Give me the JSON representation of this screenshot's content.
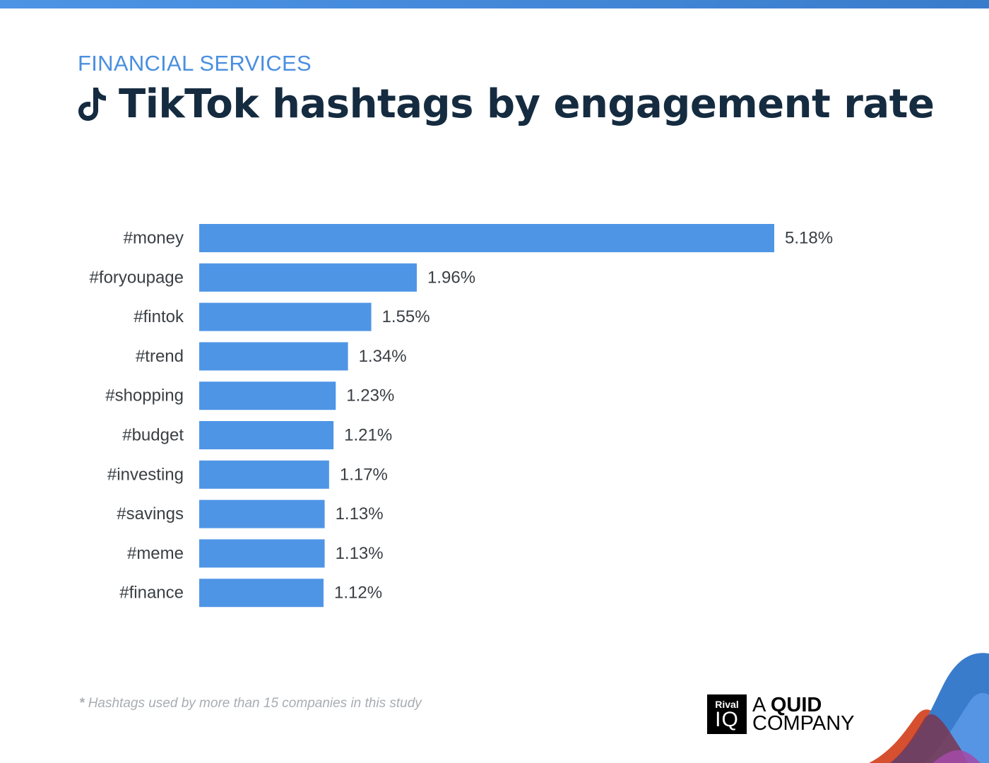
{
  "header": {
    "category": "FINANCIAL SERVICES",
    "title": "TikTok hashtags by engagement rate"
  },
  "footnote": {
    "star": "*",
    "text": "Hashtags used by more than 15 companies in this study"
  },
  "brand": {
    "box_line1": "Rival",
    "box_line2": "IQ",
    "tag_prefix": "A ",
    "tag_strong": "QUID",
    "tag_line2": "COMPANY"
  },
  "colors": {
    "bar": "#4f95e6",
    "title": "#152b40",
    "category": "#4a8fe0",
    "label": "#3a3f44"
  },
  "icons": {
    "title_icon": "tiktok-icon"
  },
  "chart_data": {
    "type": "bar",
    "orientation": "horizontal",
    "categories": [
      "#money",
      "#foryoupage",
      "#fintok",
      "#trend",
      "#shopping",
      "#budget",
      "#investing",
      "#savings",
      "#meme",
      "#finance"
    ],
    "values": [
      5.18,
      1.96,
      1.55,
      1.34,
      1.23,
      1.21,
      1.17,
      1.13,
      1.13,
      1.12
    ],
    "value_labels": [
      "5.18%",
      "1.96%",
      "1.55%",
      "1.34%",
      "1.23%",
      "1.21%",
      "1.17%",
      "1.13%",
      "1.13%",
      "1.12%"
    ],
    "title": "TikTok hashtags by engagement rate",
    "xlabel": "",
    "ylabel": "",
    "xlim": [
      0,
      5.18
    ],
    "grid": false,
    "legend": "none"
  }
}
